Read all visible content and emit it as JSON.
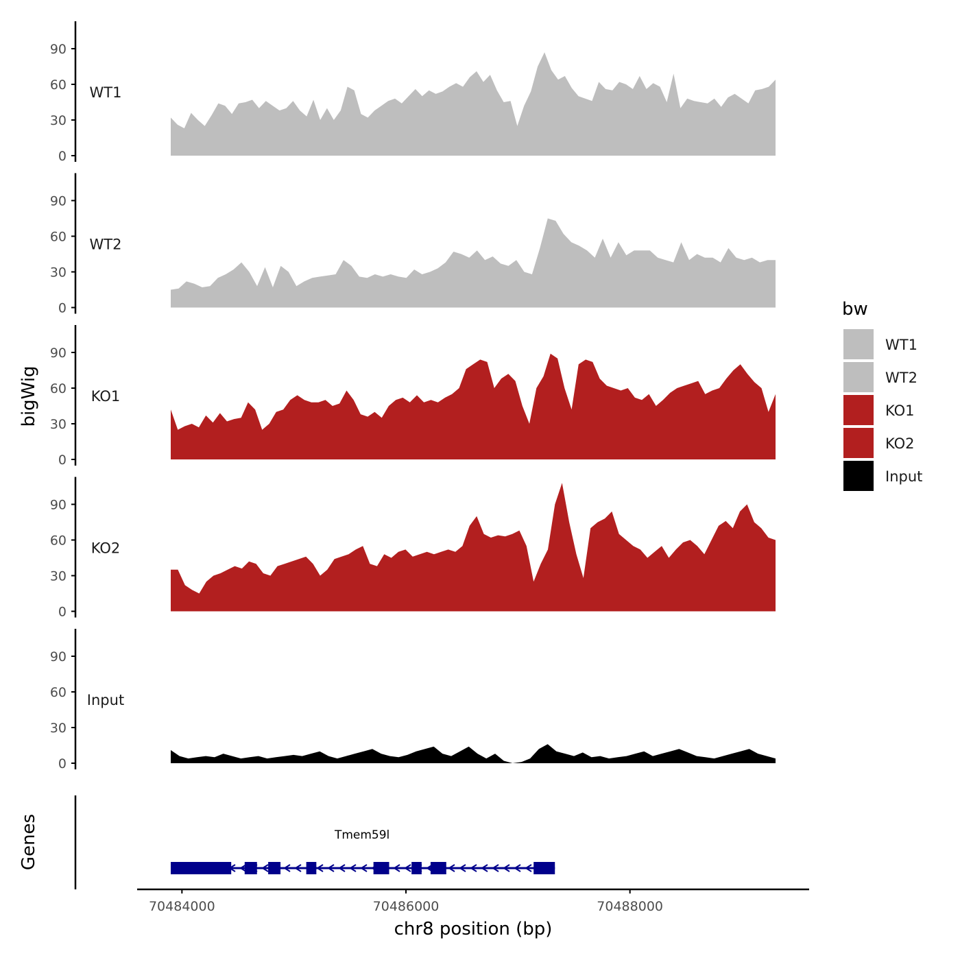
{
  "colors": {
    "wt": "#bebebe",
    "ko": "#b21f1f",
    "input": "#000000",
    "gene": "#00008b",
    "axis": "#000000"
  },
  "chart_data": {
    "type": "area",
    "title": "",
    "xlabel": "chr8 position (bp)",
    "ylabel": "bigWig",
    "genes_label": "Genes",
    "xlim": [
      70483600,
      70489600
    ],
    "ylim": [
      0,
      112
    ],
    "x_ticks": [
      70484000,
      70486000,
      70488000
    ],
    "x_tick_labels": [
      "70484000",
      "70486000",
      "70488000"
    ],
    "y_ticks": [
      0,
      30,
      60,
      90
    ],
    "y_tick_labels": [
      "0",
      "30",
      "60",
      "90"
    ],
    "track_start": 70483900,
    "track_end": 70489300,
    "legend": {
      "title": "bw",
      "entries": [
        {
          "label": "WT1",
          "color": "#bebebe"
        },
        {
          "label": "WT2",
          "color": "#bebebe"
        },
        {
          "label": "KO1",
          "color": "#b21f1f"
        },
        {
          "label": "KO2",
          "color": "#b21f1f"
        },
        {
          "label": "Input",
          "color": "#000000"
        }
      ]
    },
    "series": [
      {
        "name": "WT1",
        "color": "#bebebe",
        "values": [
          32,
          26,
          23,
          36,
          30,
          25,
          34,
          44,
          42,
          35,
          44,
          45,
          47,
          40,
          46,
          42,
          38,
          40,
          46,
          38,
          33,
          47,
          30,
          40,
          30,
          38,
          58,
          55,
          35,
          32,
          38,
          42,
          46,
          48,
          44,
          50,
          56,
          50,
          55,
          52,
          54,
          58,
          61,
          58,
          66,
          71,
          62,
          68,
          55,
          45,
          46,
          25,
          42,
          54,
          75,
          87,
          72,
          64,
          67,
          57,
          50,
          48,
          46,
          62,
          56,
          55,
          62,
          60,
          56,
          67,
          56,
          61,
          58,
          45,
          69,
          40,
          48,
          46,
          45,
          44,
          48,
          41,
          49,
          52,
          48,
          44,
          55,
          56,
          58,
          64
        ]
      },
      {
        "name": "WT2",
        "color": "#bebebe",
        "values": [
          15,
          16,
          22,
          20,
          17,
          18,
          25,
          28,
          32,
          38,
          30,
          18,
          34,
          17,
          35,
          30,
          18,
          22,
          25,
          26,
          27,
          28,
          40,
          35,
          26,
          25,
          28,
          26,
          28,
          26,
          25,
          32,
          28,
          30,
          33,
          38,
          47,
          45,
          42,
          48,
          40,
          43,
          37,
          35,
          40,
          30,
          28,
          50,
          75,
          73,
          62,
          55,
          52,
          48,
          42,
          58,
          42,
          55,
          44,
          48,
          48,
          48,
          42,
          40,
          38,
          55,
          40,
          45,
          42,
          42,
          38,
          50,
          42,
          40,
          42,
          38,
          40,
          40
        ]
      },
      {
        "name": "KO1",
        "color": "#b21f1f",
        "values": [
          42,
          25,
          28,
          30,
          27,
          37,
          31,
          39,
          32,
          34,
          35,
          48,
          42,
          25,
          30,
          40,
          42,
          50,
          54,
          50,
          48,
          48,
          50,
          45,
          47,
          58,
          50,
          38,
          36,
          40,
          35,
          45,
          50,
          52,
          48,
          54,
          48,
          50,
          48,
          52,
          55,
          60,
          76,
          80,
          84,
          82,
          60,
          68,
          72,
          66,
          45,
          30,
          60,
          70,
          89,
          85,
          60,
          42,
          80,
          84,
          82,
          68,
          62,
          60,
          58,
          60,
          52,
          50,
          55,
          45,
          50,
          56,
          60,
          62,
          64,
          66,
          55,
          58,
          60,
          68,
          75,
          80,
          72,
          65,
          60,
          40,
          55
        ]
      },
      {
        "name": "KO2",
        "color": "#b21f1f",
        "values": [
          35,
          35,
          22,
          18,
          15,
          25,
          30,
          32,
          35,
          38,
          36,
          42,
          40,
          32,
          30,
          38,
          40,
          42,
          44,
          46,
          40,
          30,
          35,
          44,
          46,
          48,
          52,
          55,
          40,
          38,
          48,
          45,
          50,
          52,
          46,
          48,
          50,
          48,
          50,
          52,
          50,
          55,
          72,
          80,
          65,
          62,
          64,
          63,
          65,
          68,
          55,
          25,
          40,
          52,
          90,
          108,
          75,
          48,
          28,
          70,
          75,
          78,
          84,
          65,
          60,
          55,
          52,
          45,
          50,
          55,
          45,
          52,
          58,
          60,
          55,
          48,
          60,
          72,
          76,
          70,
          84,
          90,
          75,
          70,
          62,
          60
        ]
      },
      {
        "name": "Input",
        "color": "#000000",
        "values": [
          11,
          6,
          4,
          5,
          6,
          5,
          8,
          6,
          4,
          5,
          6,
          4,
          5,
          6,
          7,
          6,
          8,
          10,
          6,
          4,
          6,
          8,
          10,
          12,
          8,
          6,
          5,
          7,
          10,
          12,
          14,
          8,
          6,
          10,
          14,
          8,
          4,
          8,
          2,
          0,
          1,
          4,
          12,
          16,
          10,
          8,
          6,
          9,
          5,
          6,
          4,
          5,
          6,
          8,
          10,
          6,
          8,
          10,
          12,
          9,
          6,
          5,
          4,
          6,
          8,
          10,
          12,
          8,
          6,
          4
        ]
      }
    ],
    "genes": [
      {
        "name": "Tmem59l",
        "strand": "-",
        "start": 70483900,
        "end": 70487330,
        "exons": [
          [
            70483900,
            70484440
          ],
          [
            70484560,
            70484670
          ],
          [
            70484770,
            70484880
          ],
          [
            70485110,
            70485200
          ],
          [
            70485710,
            70485850
          ],
          [
            70486050,
            70486140
          ],
          [
            70486220,
            70486360
          ],
          [
            70487140,
            70487330
          ]
        ]
      }
    ]
  }
}
